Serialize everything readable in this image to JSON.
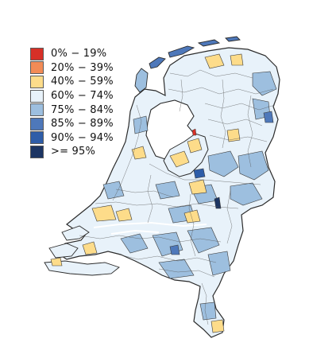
{
  "legend": {
    "items": [
      {
        "label": "0% − 19%",
        "color": "#d73027"
      },
      {
        "label": "20% − 39%",
        "color": "#f28b56"
      },
      {
        "label": "40% − 59%",
        "color": "#fddc8a"
      },
      {
        "label": "60% − 74%",
        "color": "#e8f2fa"
      },
      {
        "label": "75% − 84%",
        "color": "#9dbfdf"
      },
      {
        "label": "85% − 89%",
        "color": "#4e78ba"
      },
      {
        "label": "90% − 94%",
        "color": "#2e5da8"
      },
      {
        "label": ">= 95%",
        "color": "#1c3563"
      }
    ]
  },
  "map": {
    "region": "Netherlands municipalities",
    "water_color": "#ffffff",
    "boundary_color": "#3a3a3a",
    "base_fill": "#e8f2fa"
  }
}
